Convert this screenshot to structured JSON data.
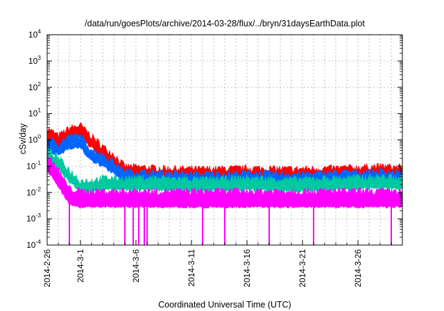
{
  "chart_data": {
    "type": "line",
    "title": "/data/run/goesPlots/archive/2014-03-28/flux/../bryn/31daysEarthData.plot",
    "xlabel": "Coordinated Universal Time (UTC)",
    "ylabel": "cSv/day",
    "yscale": "log",
    "ylim": [
      0.0001,
      10000
    ],
    "xlim": [
      "2014-02-26",
      "2014-03-30"
    ],
    "grid": true,
    "legend": "none",
    "y_ticks": [
      {
        "value": 0.0001,
        "base": "10",
        "exp": "-4"
      },
      {
        "value": 0.001,
        "base": "10",
        "exp": "-3"
      },
      {
        "value": 0.01,
        "base": "10",
        "exp": "-2"
      },
      {
        "value": 0.1,
        "base": "10",
        "exp": "-1"
      },
      {
        "value": 1,
        "base": "10",
        "exp": "0"
      },
      {
        "value": 10,
        "base": "10",
        "exp": "1"
      },
      {
        "value": 100,
        "base": "10",
        "exp": "2"
      },
      {
        "value": 1000,
        "base": "10",
        "exp": "3"
      },
      {
        "value": 10000,
        "base": "10",
        "exp": "4"
      }
    ],
    "x_ticks": [
      {
        "date": "2014-02-26",
        "label": "2014-2-26"
      },
      {
        "date": "2014-03-01",
        "label": "2014-3-1"
      },
      {
        "date": "2014-03-06",
        "label": "2014-3-6"
      },
      {
        "date": "2014-03-11",
        "label": "2014-3-11"
      },
      {
        "date": "2014-03-16",
        "label": "2014-3-16"
      },
      {
        "date": "2014-03-21",
        "label": "2014-3-21"
      },
      {
        "date": "2014-03-26",
        "label": "2014-3-26"
      }
    ],
    "series": [
      {
        "color": "#ff0000",
        "x": [
          "2014-02-26",
          "2014-02-27",
          "2014-02-28",
          "2014-03-01",
          "2014-03-02",
          "2014-03-03",
          "2014-03-04",
          "2014-03-05",
          "2014-03-08",
          "2014-03-12",
          "2014-03-16",
          "2014-03-20",
          "2014-03-24",
          "2014-03-28",
          "2014-03-30"
        ],
        "y": [
          2.0,
          1.0,
          2.0,
          2.5,
          1.0,
          0.4,
          0.2,
          0.07,
          0.06,
          0.055,
          0.06,
          0.055,
          0.06,
          0.07,
          0.065
        ]
      },
      {
        "color": "#0066ff",
        "x": [
          "2014-02-26",
          "2014-02-27",
          "2014-02-28",
          "2014-03-01",
          "2014-03-02",
          "2014-03-03",
          "2014-03-04",
          "2014-03-05",
          "2014-03-08",
          "2014-03-12",
          "2014-03-16",
          "2014-03-20",
          "2014-03-24",
          "2014-03-28",
          "2014-03-30"
        ],
        "y": [
          0.8,
          0.5,
          1.0,
          1.0,
          0.3,
          0.2,
          0.1,
          0.045,
          0.04,
          0.035,
          0.04,
          0.035,
          0.04,
          0.045,
          0.04
        ]
      },
      {
        "color": "#00c8a0",
        "x": [
          "2014-02-26",
          "2014-02-27",
          "2014-02-28",
          "2014-03-01",
          "2014-03-02",
          "2014-03-03",
          "2014-03-04",
          "2014-03-05",
          "2014-03-08",
          "2014-03-12",
          "2014-03-16",
          "2014-03-20",
          "2014-03-24",
          "2014-03-28",
          "2014-03-30"
        ],
        "y": [
          0.3,
          0.15,
          0.05,
          0.02,
          0.02,
          0.025,
          0.025,
          0.025,
          0.025,
          0.022,
          0.025,
          0.022,
          0.025,
          0.028,
          0.025
        ]
      },
      {
        "color": "#ff00ff",
        "x": [
          "2014-02-26",
          "2014-02-27",
          "2014-02-28",
          "2014-03-01",
          "2014-03-02",
          "2014-03-03",
          "2014-03-04",
          "2014-03-05",
          "2014-03-08",
          "2014-03-12",
          "2014-03-16",
          "2014-03-20",
          "2014-03-24",
          "2014-03-28",
          "2014-03-30"
        ],
        "y": [
          0.2,
          0.05,
          0.01,
          0.008,
          0.008,
          0.008,
          0.008,
          0.008,
          0.008,
          0.008,
          0.008,
          0.008,
          0.008,
          0.008,
          0.008
        ]
      }
    ],
    "dropouts": {
      "color": "#ff00ff",
      "dates": [
        "2014-02-28",
        "2014-03-05",
        "2014-03-05T18:00",
        "2014-03-06T06:00",
        "2014-03-06T18:00",
        "2014-03-07",
        "2014-03-12",
        "2014-03-14",
        "2014-03-18",
        "2014-03-22",
        "2014-03-29"
      ],
      "y": 0.0001
    }
  }
}
